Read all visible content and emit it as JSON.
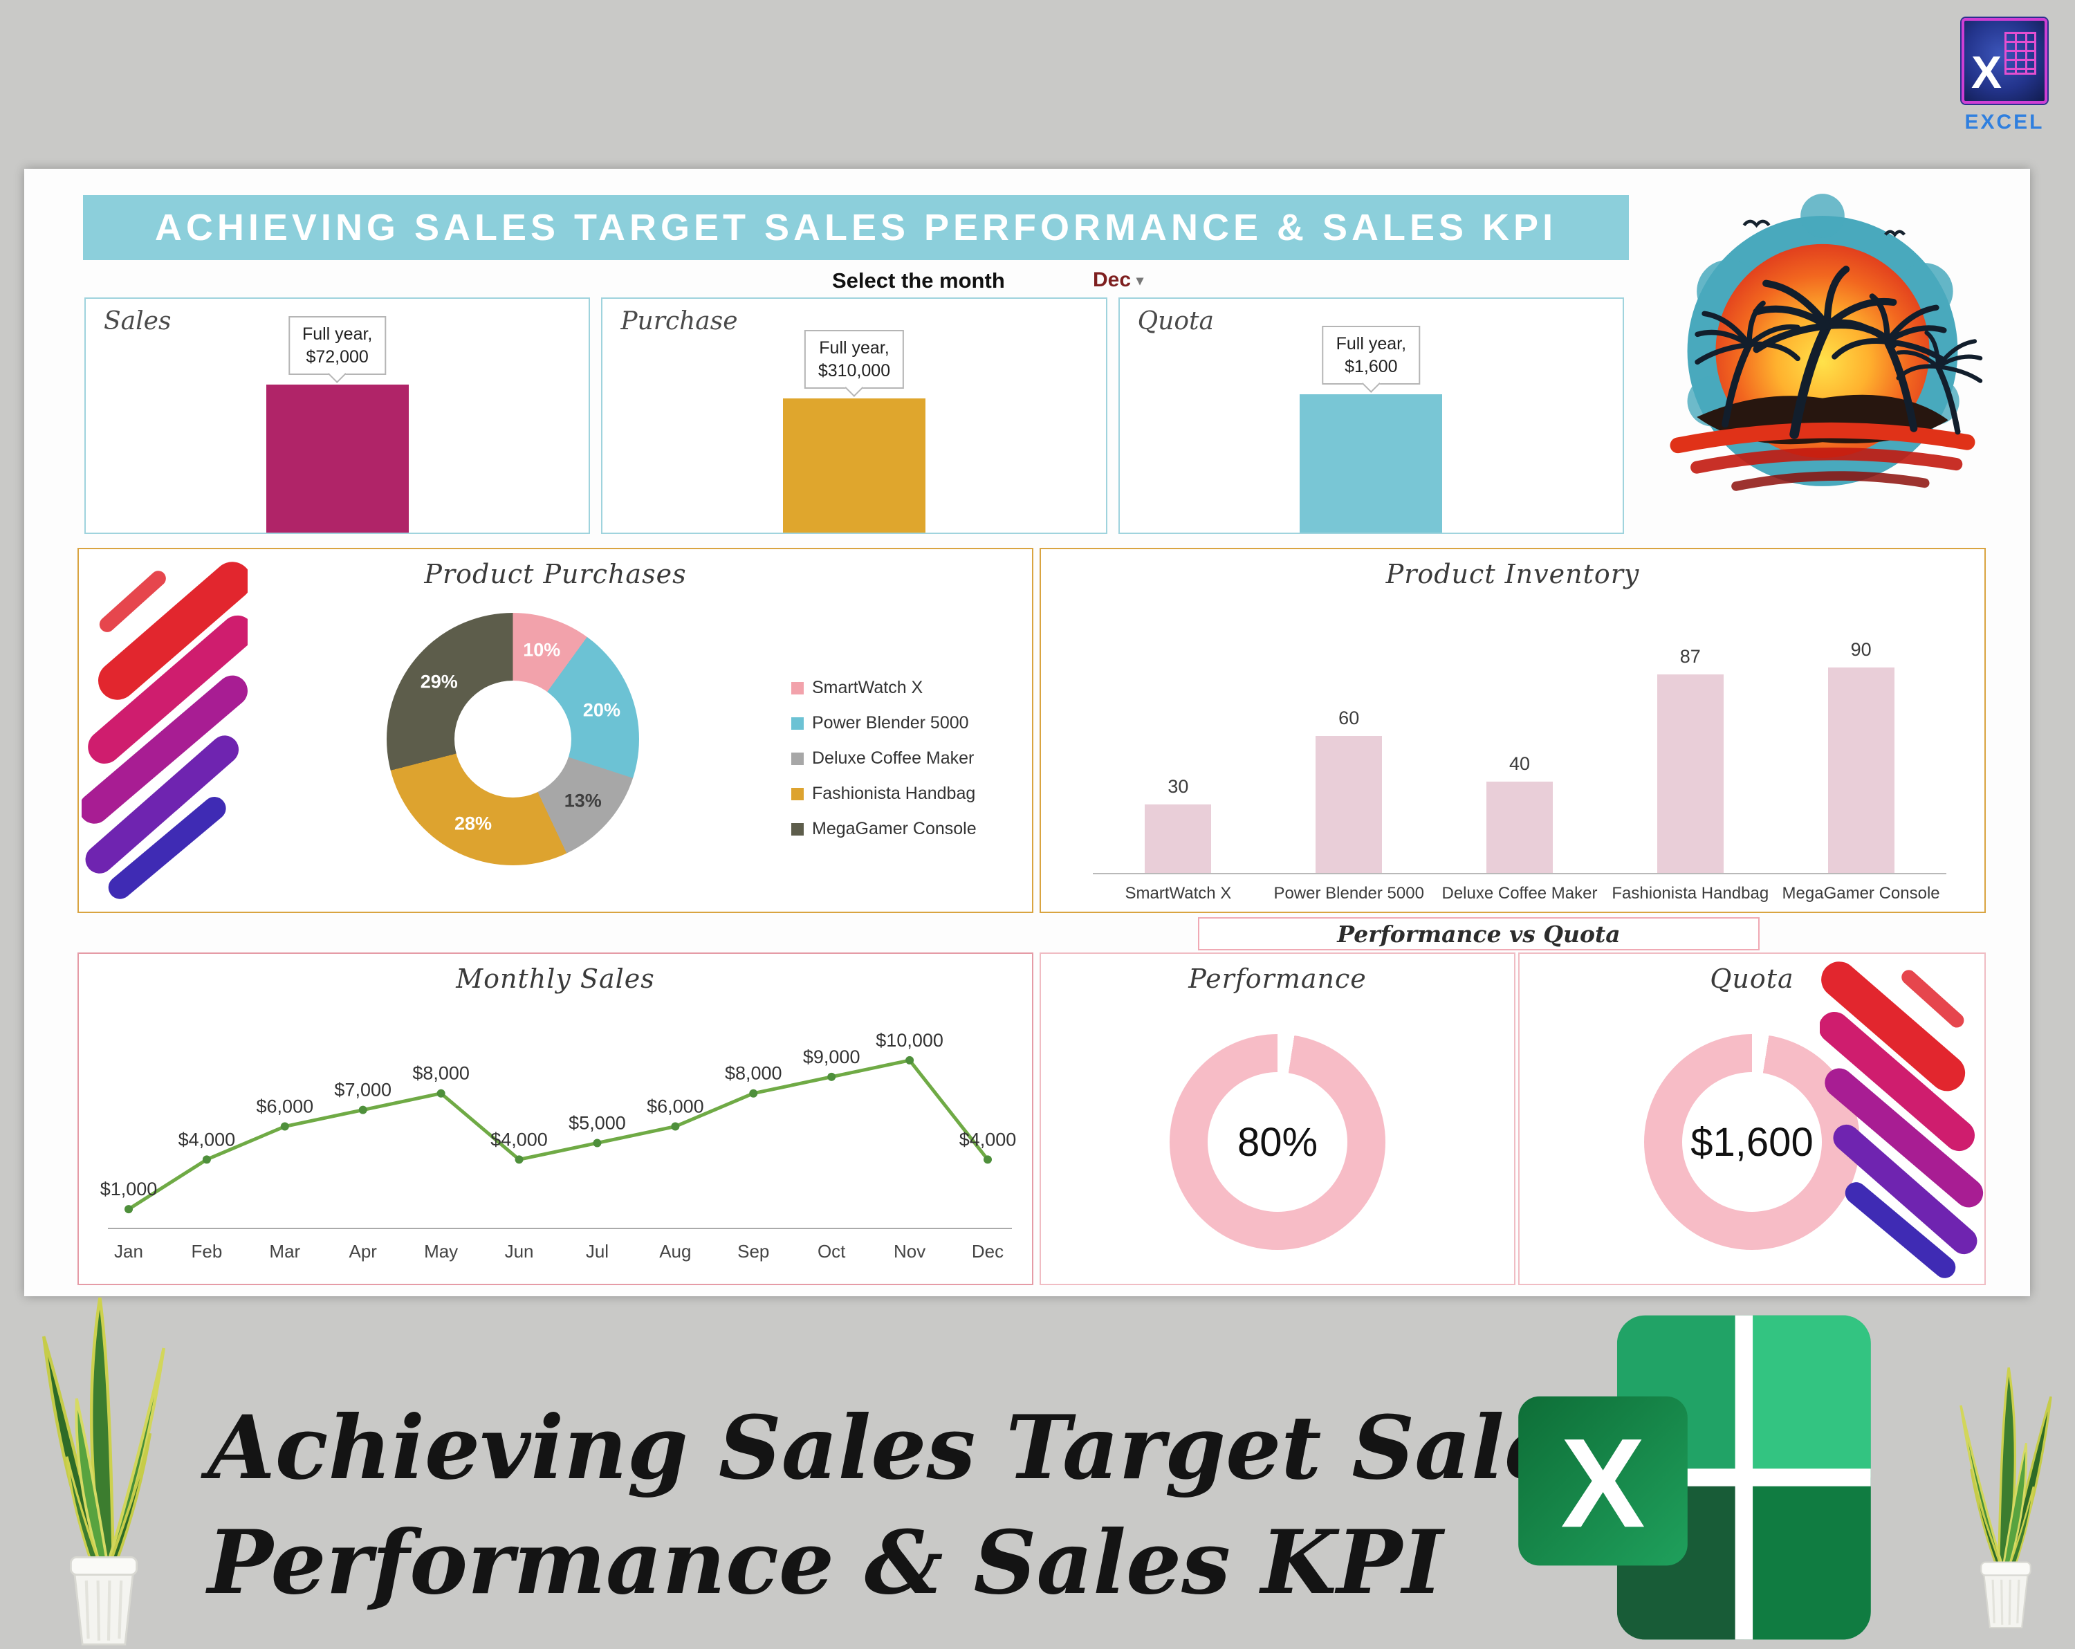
{
  "corner_badge": {
    "label": "EXCEL",
    "icon_letter": "X"
  },
  "header": {
    "title": "ACHIEVING SALES TARGET SALES PERFORMANCE & SALES KPI",
    "month_label": "Select the month",
    "month_value": "Dec"
  },
  "kpi_cards": [
    {
      "label": "Sales",
      "callout_line1": "Full year,",
      "callout_line2": "$72,000",
      "bar_color": "#b02468"
    },
    {
      "label": "Purchase",
      "callout_line1": "Full year,",
      "callout_line2": "$310,000",
      "bar_color": "#dfa62d"
    },
    {
      "label": "Quota",
      "callout_line1": "Full year,",
      "callout_line2": "$1,600",
      "bar_color": "#79c6d5"
    }
  ],
  "chart_data": [
    {
      "name": "product_purchases",
      "type": "pie",
      "title": "Product Purchases",
      "labels": [
        "SmartWatch X",
        "Power Blender 5000",
        "Deluxe Coffee Maker",
        "Fashionista Handbag",
        "MegaGamer Console"
      ],
      "values": [
        10,
        20,
        13,
        28,
        29
      ],
      "data_labels": [
        "10%",
        "20%",
        "13%",
        "28%",
        "29%"
      ],
      "colors": [
        "#f2a2ab",
        "#6cc2d4",
        "#a7a7a7",
        "#dda32f",
        "#5d5d4b"
      ],
      "label_colors": [
        "#ffffff",
        "#ffffff",
        "#3f3f3f",
        "#ffffff",
        "#ffffff"
      ],
      "donut": true,
      "legend_position": "right"
    },
    {
      "name": "product_inventory",
      "type": "bar",
      "title": "Product Inventory",
      "categories": [
        "SmartWatch X",
        "Power Blender 5000",
        "Deluxe Coffee Maker",
        "Fashionista Handbag",
        "MegaGamer Console"
      ],
      "values": [
        30,
        60,
        40,
        87,
        90
      ],
      "bar_color": "#e9ced8",
      "ylim": [
        0,
        100
      ],
      "gridlines": false
    },
    {
      "name": "monthly_sales",
      "type": "line",
      "title": "Monthly Sales",
      "x": [
        "Jan",
        "Feb",
        "Mar",
        "Apr",
        "May",
        "Jun",
        "Jul",
        "Aug",
        "Sep",
        "Oct",
        "Nov",
        "Dec"
      ],
      "values": [
        1000,
        4000,
        6000,
        7000,
        8000,
        4000,
        5000,
        6000,
        8000,
        9000,
        10000,
        4000
      ],
      "data_labels": [
        "$1,000",
        "$4,000",
        "$6,000",
        "$7,000",
        "$8,000",
        "$4,000",
        "$5,000",
        "$6,000",
        "$8,000",
        "$9,000",
        "$10,000",
        "$4,000"
      ],
      "line_color": "#6faa45",
      "marker_color": "#4e8f3b",
      "ylim": [
        0,
        11000
      ]
    },
    {
      "name": "performance_gauge",
      "type": "pie",
      "title": "Performance",
      "center_label": "80%",
      "values": [
        80
      ],
      "ring_color": "#f7bcc6"
    },
    {
      "name": "quota_gauge",
      "type": "pie",
      "title": "Quota",
      "center_label": "$1,600",
      "values": [
        1600
      ],
      "ring_color": "#f7bcc6"
    }
  ],
  "labels": {
    "performance_vs_quota": "Performance vs Quota"
  },
  "footer": {
    "line1": "Achieving Sales Target Sales",
    "line2": "Performance & Sales KPI"
  },
  "excel_logo": {
    "letter": "X"
  }
}
